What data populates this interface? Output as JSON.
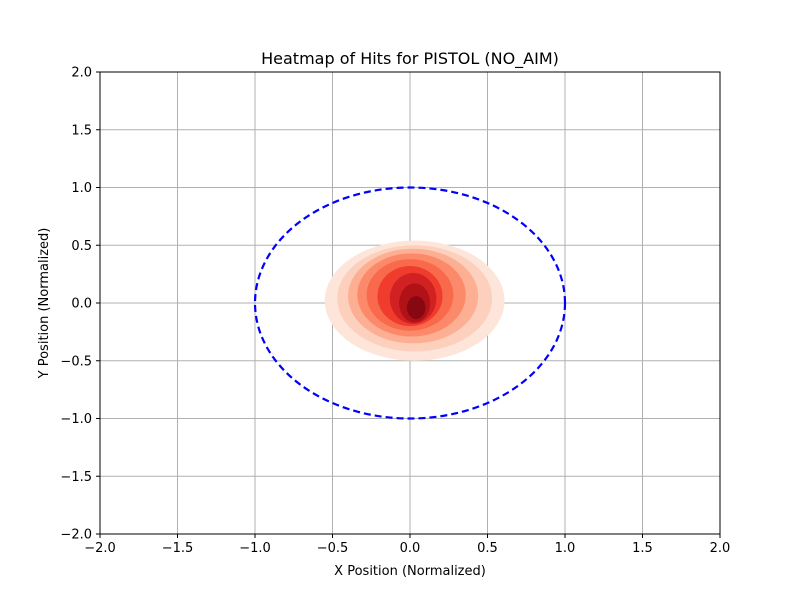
{
  "chart_data": {
    "type": "heatmap",
    "title": "Heatmap of Hits for PISTOL (NO_AIM)",
    "xlabel": "X Position (Normalized)",
    "ylabel": "Y Position (Normalized)",
    "xlim": [
      -2.0,
      2.0
    ],
    "ylim": [
      -2.0,
      2.0
    ],
    "x_ticks": [
      "−2.0",
      "−1.5",
      "−1.0",
      "−0.5",
      "0.0",
      "0.5",
      "1.0",
      "1.5",
      "2.0"
    ],
    "y_ticks": [
      "2.0",
      "1.5",
      "1.0",
      "0.5",
      "0.0",
      "−0.5",
      "−1.0",
      "−1.5",
      "−2.0"
    ],
    "x_tick_values": [
      -2.0,
      -1.5,
      -1.0,
      -0.5,
      0.0,
      0.5,
      1.0,
      1.5,
      2.0
    ],
    "y_tick_values": [
      2.0,
      1.5,
      1.0,
      0.5,
      0.0,
      -0.5,
      -1.0,
      -1.5,
      -2.0
    ],
    "grid": true,
    "colormap": "Reds",
    "colors": {
      "levels": [
        "#fee5d9",
        "#fdd0bd",
        "#fcaf93",
        "#fc8a6a",
        "#f96a4d",
        "#ef3c2c",
        "#d22122",
        "#b01217",
        "#870811"
      ],
      "boundary": "#0000ff",
      "grid": "#b0b0b0"
    },
    "density_center": {
      "x": 0.0,
      "y": 0.0
    },
    "density_levels": [
      {
        "cx": 0.03,
        "cy": 0.02,
        "rx": 0.58,
        "ry": 0.52
      },
      {
        "cx": 0.03,
        "cy": 0.04,
        "rx": 0.5,
        "ry": 0.46
      },
      {
        "cx": 0.02,
        "cy": 0.06,
        "rx": 0.42,
        "ry": 0.41
      },
      {
        "cx": 0.01,
        "cy": 0.07,
        "rx": 0.35,
        "ry": 0.36
      },
      {
        "cx": 0.0,
        "cy": 0.07,
        "rx": 0.28,
        "ry": 0.31
      },
      {
        "cx": 0.0,
        "cy": 0.06,
        "rx": 0.21,
        "ry": 0.26
      },
      {
        "cx": 0.02,
        "cy": 0.04,
        "rx": 0.15,
        "ry": 0.22
      },
      {
        "cx": 0.03,
        "cy": 0.0,
        "rx": 0.1,
        "ry": 0.17
      },
      {
        "cx": 0.04,
        "cy": -0.04,
        "rx": 0.06,
        "ry": 0.1
      }
    ],
    "boundary": {
      "cx": 0.0,
      "cy": 0.0,
      "r": 1.0,
      "style": "dashed"
    }
  }
}
